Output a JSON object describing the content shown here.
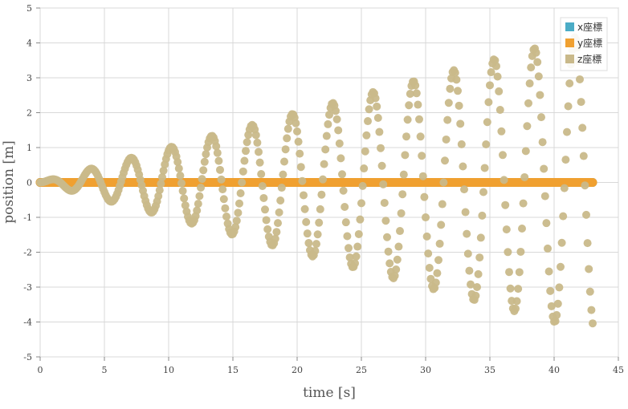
{
  "chart_data": {
    "type": "scatter",
    "xlabel": "time [s]",
    "ylabel": "position [m]",
    "xlim": [
      0,
      45
    ],
    "ylim": [
      -5,
      5
    ],
    "xticks": [
      0,
      5,
      10,
      15,
      20,
      25,
      30,
      35,
      40,
      45
    ],
    "yticks": [
      -5,
      -4,
      -3,
      -2,
      -1,
      0,
      1,
      2,
      3,
      4,
      5
    ],
    "grid": true,
    "legend_position": "top-right",
    "series": [
      {
        "name": "x座標",
        "color": "#4bacc6",
        "function": {
          "kind": "constant",
          "value": 0,
          "t_start": 0,
          "t_end": 43,
          "dt": 0.1
        }
      },
      {
        "name": "y座標",
        "color": "#f0a030",
        "function": {
          "kind": "constant",
          "value": 0,
          "t_start": 0,
          "t_end": 43,
          "dt": 0.1
        }
      },
      {
        "name": "z座標",
        "color": "#c9b98a",
        "function": {
          "kind": "growing_sine",
          "amplitude_rate": 0.1,
          "period": 3.14,
          "t_start": 0,
          "t_end": 43,
          "dt": 0.1
        }
      }
    ]
  }
}
